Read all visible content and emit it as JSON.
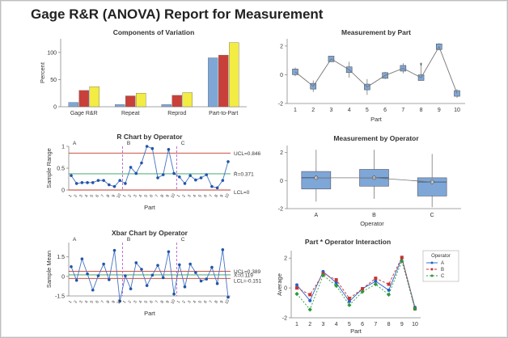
{
  "report_title": "Gage R&R (ANOVA) Report for Measurement",
  "colors": {
    "gage_blue": "#7ea7d8",
    "gage_red": "#c9403a",
    "gage_yellow": "#f3ec43",
    "series_line": "#4472c4",
    "point": "#2054a8",
    "limit": "#c0392b",
    "center": "#2e9e5b",
    "divider": "#b050c8",
    "box_fill": "#7ea7d8",
    "op_a": "#2860c8",
    "op_b": "#c83434",
    "op_c": "#2a9a3a"
  },
  "chart_data": [
    {
      "id": "components",
      "type": "bar",
      "title": "Components of Variation",
      "ylabel": "Percent",
      "ylim": [
        0,
        125
      ],
      "yticks": [
        0,
        50,
        100
      ],
      "categories": [
        "Gage R&R",
        "Repeat",
        "Reprod",
        "Part-to-Part"
      ],
      "series": [
        {
          "values": [
            8,
            4,
            4,
            90
          ]
        },
        {
          "values": [
            30,
            20,
            21,
            95
          ]
        },
        {
          "values": [
            37,
            25,
            26,
            118
          ]
        }
      ]
    },
    {
      "id": "measurement_by_part",
      "type": "scatter",
      "title": "Measurement by Part",
      "xlabel": "Part",
      "ylim": [
        -2,
        2.5
      ],
      "yticks": [
        -2,
        0,
        2
      ],
      "categories": [
        "1",
        "2",
        "3",
        "4",
        "5",
        "6",
        "7",
        "8",
        "9",
        "10"
      ],
      "means": [
        0.2,
        -0.8,
        1.1,
        0.35,
        -0.85,
        -0.05,
        0.45,
        -0.2,
        1.95,
        -1.3
      ],
      "ranges": [
        [
          -0.1,
          0.5
        ],
        [
          -1.2,
          -0.4
        ],
        [
          0.9,
          1.3
        ],
        [
          -0.2,
          0.9
        ],
        [
          -1.4,
          -0.3
        ],
        [
          -0.3,
          0.2
        ],
        [
          0.1,
          0.8
        ],
        [
          -0.4,
          0.7
        ],
        [
          1.7,
          2.2
        ],
        [
          -1.6,
          -1.0
        ]
      ],
      "outlier": {
        "part": "8",
        "value": 0.65,
        "symbol": "*"
      }
    },
    {
      "id": "r_chart",
      "type": "line",
      "title": "R Chart by Operator",
      "ylabel": "Sample Range",
      "ylim": [
        0,
        1.0
      ],
      "yticks": [
        0,
        0.5,
        1.0
      ],
      "xlabel": "Part",
      "operators": [
        "A",
        "B",
        "C"
      ],
      "xticks": [
        "1",
        "2",
        "3",
        "4",
        "5",
        "6",
        "7",
        "8",
        "9",
        "10"
      ],
      "values": [
        0.33,
        0.15,
        0.17,
        0.17,
        0.17,
        0.22,
        0.22,
        0.12,
        0.08,
        0.22,
        0.15,
        0.52,
        0.38,
        0.62,
        1.0,
        0.95,
        0.28,
        0.35,
        0.93,
        0.38,
        0.3,
        0.15,
        0.33,
        0.23,
        0.28,
        0.35,
        0.08,
        0.05,
        0.22,
        0.65
      ],
      "ucl": 0.846,
      "center": 0.371,
      "lcl": 0,
      "limit_labels": {
        "ucl": "UCL=0.846",
        "center": "R̄=0.371",
        "lcl": "LCL=0"
      }
    },
    {
      "id": "measurement_by_operator",
      "type": "box",
      "title": "Measurement by Operator",
      "xlabel": "Operator",
      "ylim": [
        -2,
        2.5
      ],
      "yticks": [
        -2,
        0,
        2
      ],
      "categories": [
        "A",
        "B",
        "C"
      ],
      "boxes": [
        {
          "min": -1.5,
          "q1": -0.6,
          "median": 0.2,
          "q3": 0.65,
          "max": 2.2
        },
        {
          "min": -1.3,
          "q1": -0.4,
          "median": 0.2,
          "q3": 0.8,
          "max": 2.2
        },
        {
          "min": -1.9,
          "q1": -1.1,
          "median": -0.1,
          "q3": 0.2,
          "max": 1.9
        }
      ],
      "means": [
        0.2,
        0.2,
        -0.1
      ]
    },
    {
      "id": "xbar_chart",
      "type": "line",
      "title": "Xbar Chart by Operator",
      "ylabel": "Sample Mean",
      "ylim": [
        -1.5,
        2.6
      ],
      "yticks": [
        -1.5,
        0,
        1.5
      ],
      "xlabel": "Part",
      "operators": [
        "A",
        "B",
        "C"
      ],
      "xticks": [
        "1",
        "2",
        "3",
        "4",
        "5",
        "6",
        "7",
        "8",
        "9",
        "10"
      ],
      "values": [
        0.75,
        -0.3,
        1.35,
        0.2,
        -1.05,
        0.05,
        0.95,
        -0.25,
        2.0,
        -1.9,
        0.05,
        -0.95,
        1.05,
        0.55,
        -0.7,
        0.1,
        0.85,
        -0.1,
        1.9,
        -1.35,
        0.9,
        -0.8,
        0.95,
        0.3,
        -0.35,
        -0.2,
        0.7,
        -0.55,
        2.05,
        -1.6
      ],
      "ucl": 0.389,
      "center": 0.119,
      "lcl": -0.151,
      "limit_labels": {
        "ucl": "UCL=0.389",
        "center": "X̄=0.119",
        "lcl": "LCL=-0.151"
      }
    },
    {
      "id": "interaction",
      "type": "line",
      "title": "Part * Operator Interaction",
      "ylabel": "Average",
      "xlabel": "Part",
      "ylim": [
        -2,
        2.5
      ],
      "yticks": [
        -2,
        0,
        2
      ],
      "categories": [
        "1",
        "2",
        "3",
        "4",
        "5",
        "6",
        "7",
        "8",
        "9",
        "10"
      ],
      "legend_title": "Operator",
      "series": [
        {
          "name": "A",
          "values": [
            0.2,
            -0.85,
            1.1,
            0.35,
            -0.9,
            -0.05,
            0.45,
            -0.15,
            2.0,
            -1.3
          ]
        },
        {
          "name": "B",
          "values": [
            0.0,
            -0.45,
            0.95,
            0.55,
            -0.7,
            -0.05,
            0.65,
            0.25,
            2.05,
            -1.4
          ]
        },
        {
          "name": "C",
          "values": [
            -0.4,
            -1.45,
            0.85,
            0.15,
            -1.15,
            -0.25,
            0.25,
            -0.45,
            1.8,
            -1.4
          ]
        }
      ]
    }
  ]
}
